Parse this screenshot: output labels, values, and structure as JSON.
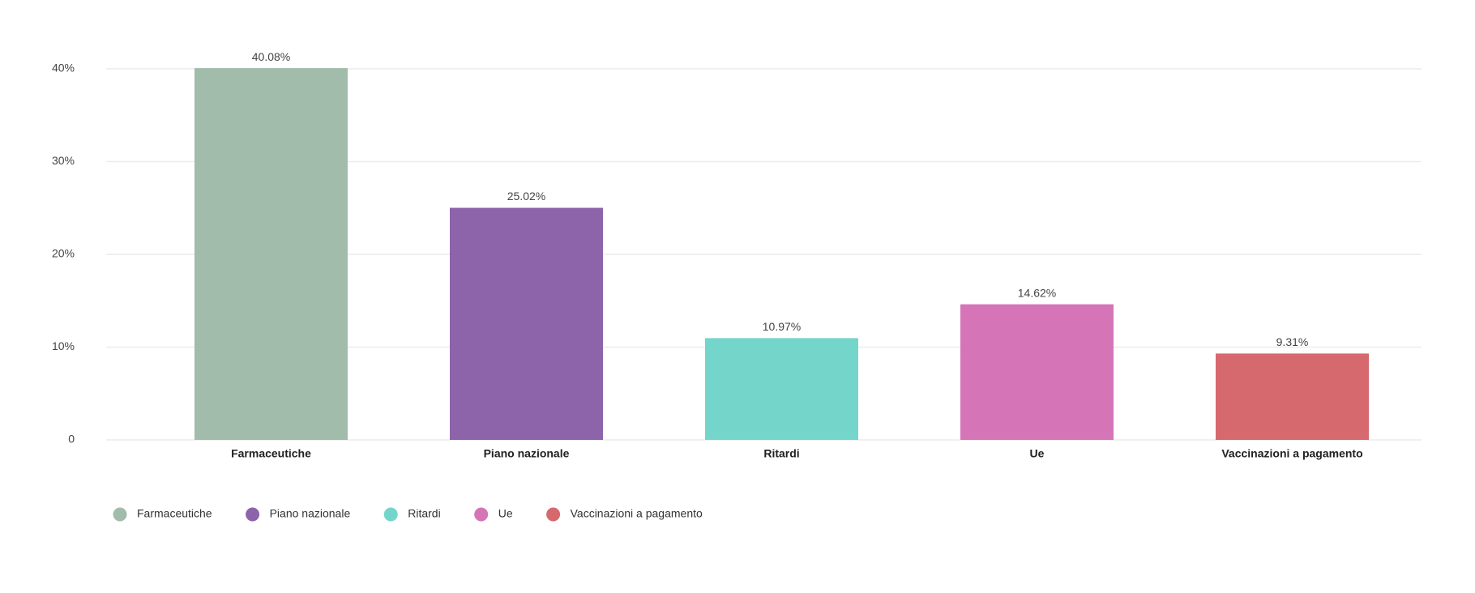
{
  "chart_data": {
    "type": "bar",
    "categories": [
      "Farmaceutiche",
      "Piano nazionale",
      "Ritardi",
      "Ue",
      "Vaccinazioni a pagamento"
    ],
    "values": [
      40.08,
      25.02,
      10.97,
      14.62,
      9.31
    ],
    "value_labels": [
      "40.08%",
      "25.02%",
      "10.97%",
      "14.62%",
      "9.31%"
    ],
    "colors": [
      "#a2bcac",
      "#8d63aa",
      "#74d6ca",
      "#d575b8",
      "#d6696d"
    ],
    "ylim": [
      0,
      40
    ],
    "yticks": [
      0,
      {
        "value": 10,
        "label": "10%"
      },
      {
        "value": 20,
        "label": "20%"
      },
      {
        "value": 30,
        "label": "30%"
      },
      {
        "value": 40,
        "label": "40%"
      }
    ],
    "grid": true,
    "legend": "bottom-left"
  }
}
